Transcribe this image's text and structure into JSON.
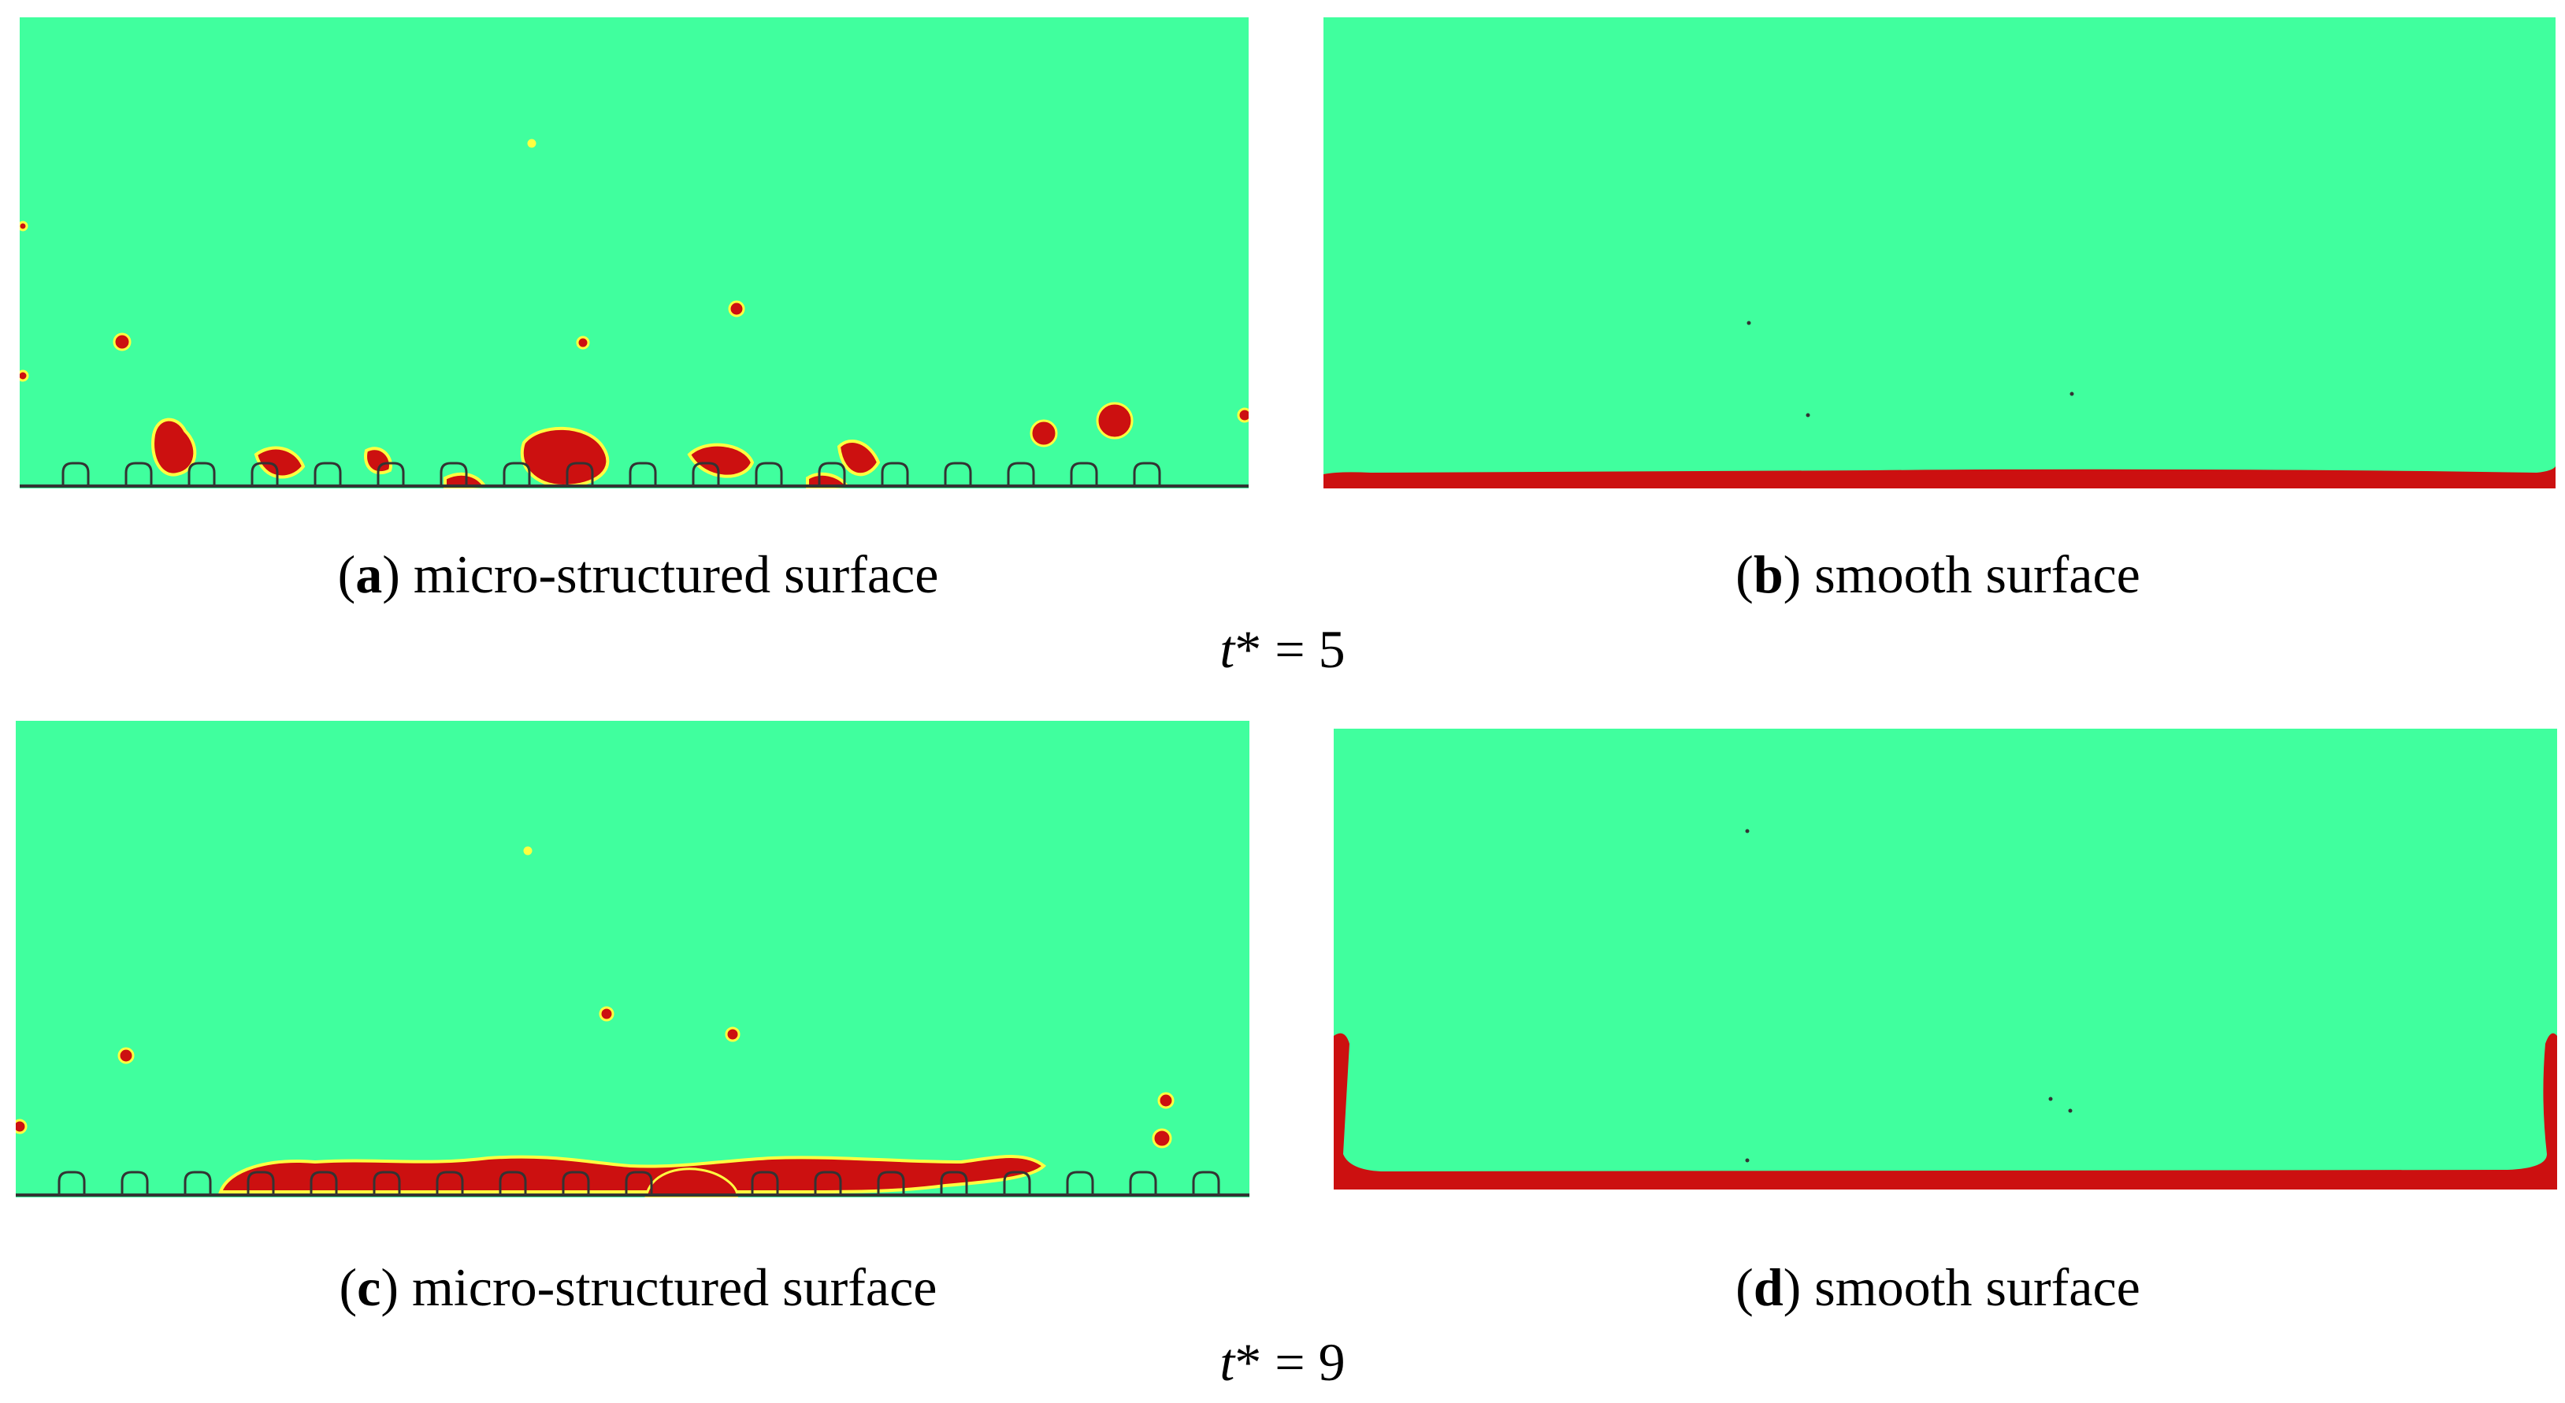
{
  "figure": {
    "panel_a": {
      "letter": "a",
      "label": " micro-structured surface"
    },
    "panel_b": {
      "letter": "b",
      "label": " smooth surface"
    },
    "time_1": {
      "symbol": "t",
      "text": "* = 5"
    },
    "panel_c": {
      "letter": "c",
      "label": " micro-structured surface"
    },
    "panel_d": {
      "letter": "d",
      "label": " smooth surface"
    },
    "time_2": {
      "symbol": "t",
      "text": "* = 9"
    }
  },
  "colors": {
    "background_phase": "#40FF9E",
    "liquid_phase": "#CC1010",
    "interface": "#FFFF40",
    "wall": "#333333"
  }
}
